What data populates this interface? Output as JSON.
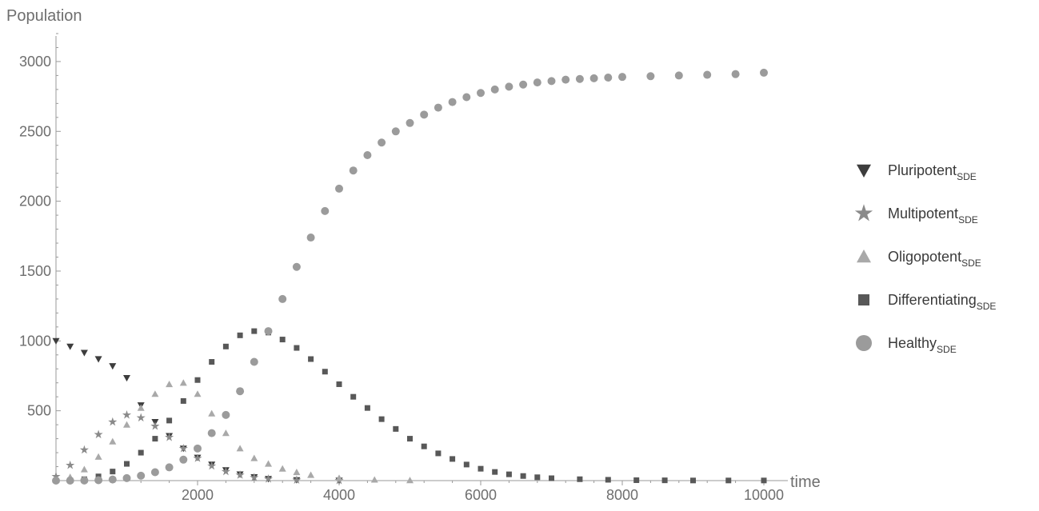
{
  "chart_data": {
    "type": "scatter",
    "title": "",
    "xlabel": "time",
    "ylabel": "Population",
    "xlim": [
      0,
      10000
    ],
    "ylim": [
      0,
      3200
    ],
    "xticks": [
      2000,
      4000,
      6000,
      8000,
      10000
    ],
    "yticks": [
      500,
      1000,
      1500,
      2000,
      2500,
      3000
    ],
    "grid": false,
    "legend_position": "right",
    "legend_subscript": "SDE",
    "series": [
      {
        "name": "Pluripotent",
        "marker": "triangle-down",
        "color": "#3d3d3d",
        "points": [
          [
            0,
            1000
          ],
          [
            200,
            960
          ],
          [
            400,
            915
          ],
          [
            600,
            870
          ],
          [
            800,
            820
          ],
          [
            1000,
            735
          ],
          [
            1200,
            540
          ],
          [
            1400,
            420
          ],
          [
            1600,
            320
          ],
          [
            1800,
            230
          ],
          [
            2000,
            165
          ],
          [
            2200,
            115
          ],
          [
            2400,
            75
          ],
          [
            2600,
            45
          ],
          [
            2800,
            25
          ],
          [
            3000,
            12
          ],
          [
            3400,
            4
          ],
          [
            4000,
            1
          ]
        ]
      },
      {
        "name": "Multipotent",
        "marker": "star",
        "color": "#8a8a8a",
        "points": [
          [
            0,
            30
          ],
          [
            200,
            110
          ],
          [
            400,
            220
          ],
          [
            600,
            330
          ],
          [
            800,
            420
          ],
          [
            1000,
            470
          ],
          [
            1200,
            450
          ],
          [
            1400,
            390
          ],
          [
            1600,
            310
          ],
          [
            1800,
            230
          ],
          [
            2000,
            160
          ],
          [
            2200,
            105
          ],
          [
            2400,
            65
          ],
          [
            2600,
            40
          ],
          [
            2800,
            22
          ],
          [
            3000,
            12
          ],
          [
            3400,
            4
          ],
          [
            4000,
            1
          ]
        ]
      },
      {
        "name": "Oligopotent",
        "marker": "triangle-up",
        "color": "#a9a9a9",
        "points": [
          [
            0,
            5
          ],
          [
            200,
            25
          ],
          [
            400,
            80
          ],
          [
            600,
            170
          ],
          [
            800,
            280
          ],
          [
            1000,
            400
          ],
          [
            1200,
            520
          ],
          [
            1400,
            620
          ],
          [
            1600,
            690
          ],
          [
            1800,
            700
          ],
          [
            2000,
            620
          ],
          [
            2200,
            480
          ],
          [
            2400,
            340
          ],
          [
            2600,
            230
          ],
          [
            2800,
            160
          ],
          [
            3000,
            120
          ],
          [
            3200,
            85
          ],
          [
            3400,
            60
          ],
          [
            3600,
            40
          ],
          [
            4000,
            18
          ],
          [
            4500,
            6
          ],
          [
            5000,
            2
          ]
        ]
      },
      {
        "name": "Differentiating",
        "marker": "square",
        "color": "#585858",
        "points": [
          [
            0,
            0
          ],
          [
            200,
            2
          ],
          [
            400,
            10
          ],
          [
            600,
            30
          ],
          [
            800,
            65
          ],
          [
            1000,
            120
          ],
          [
            1200,
            200
          ],
          [
            1400,
            300
          ],
          [
            1600,
            430
          ],
          [
            1800,
            570
          ],
          [
            2000,
            720
          ],
          [
            2200,
            850
          ],
          [
            2400,
            960
          ],
          [
            2600,
            1040
          ],
          [
            2800,
            1070
          ],
          [
            3000,
            1060
          ],
          [
            3200,
            1010
          ],
          [
            3400,
            950
          ],
          [
            3600,
            870
          ],
          [
            3800,
            780
          ],
          [
            4000,
            690
          ],
          [
            4200,
            600
          ],
          [
            4400,
            520
          ],
          [
            4600,
            440
          ],
          [
            4800,
            370
          ],
          [
            5000,
            300
          ],
          [
            5200,
            245
          ],
          [
            5400,
            195
          ],
          [
            5600,
            155
          ],
          [
            5800,
            115
          ],
          [
            6000,
            85
          ],
          [
            6200,
            62
          ],
          [
            6400,
            45
          ],
          [
            6600,
            33
          ],
          [
            6800,
            24
          ],
          [
            7000,
            17
          ],
          [
            7400,
            10
          ],
          [
            7800,
            6
          ],
          [
            8200,
            3
          ],
          [
            8600,
            2
          ],
          [
            9000,
            1
          ],
          [
            9500,
            1
          ],
          [
            10000,
            1
          ]
        ]
      },
      {
        "name": "Healthy",
        "marker": "circle",
        "color": "#9b9b9b",
        "points": [
          [
            0,
            0
          ],
          [
            200,
            0
          ],
          [
            400,
            1
          ],
          [
            600,
            3
          ],
          [
            800,
            8
          ],
          [
            1000,
            18
          ],
          [
            1200,
            35
          ],
          [
            1400,
            60
          ],
          [
            1600,
            95
          ],
          [
            1800,
            150
          ],
          [
            2000,
            230
          ],
          [
            2200,
            340
          ],
          [
            2400,
            470
          ],
          [
            2600,
            640
          ],
          [
            2800,
            850
          ],
          [
            3000,
            1070
          ],
          [
            3200,
            1300
          ],
          [
            3400,
            1530
          ],
          [
            3600,
            1740
          ],
          [
            3800,
            1930
          ],
          [
            4000,
            2090
          ],
          [
            4200,
            2220
          ],
          [
            4400,
            2330
          ],
          [
            4600,
            2420
          ],
          [
            4800,
            2500
          ],
          [
            5000,
            2560
          ],
          [
            5200,
            2620
          ],
          [
            5400,
            2670
          ],
          [
            5600,
            2710
          ],
          [
            5800,
            2745
          ],
          [
            6000,
            2775
          ],
          [
            6200,
            2800
          ],
          [
            6400,
            2820
          ],
          [
            6600,
            2835
          ],
          [
            6800,
            2850
          ],
          [
            7000,
            2860
          ],
          [
            7200,
            2870
          ],
          [
            7400,
            2875
          ],
          [
            7600,
            2880
          ],
          [
            7800,
            2885
          ],
          [
            8000,
            2890
          ],
          [
            8400,
            2895
          ],
          [
            8800,
            2900
          ],
          [
            9200,
            2905
          ],
          [
            9600,
            2910
          ],
          [
            10000,
            2920
          ]
        ]
      }
    ]
  }
}
